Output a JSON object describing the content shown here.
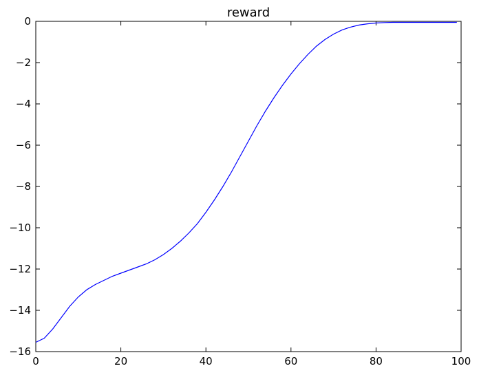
{
  "chart_data": {
    "type": "line",
    "title": "reward",
    "xlabel": "",
    "ylabel": "",
    "xlim": [
      0,
      100
    ],
    "ylim": [
      -16,
      0
    ],
    "xticks": [
      0,
      20,
      40,
      60,
      80,
      100
    ],
    "yticks": [
      0,
      -2,
      -4,
      -6,
      -8,
      -10,
      -12,
      -14,
      -16
    ],
    "grid": false,
    "legend": "none",
    "line_color": "#0000ff",
    "series": [
      {
        "x": [
          0,
          2,
          4,
          6,
          8,
          10,
          12,
          14,
          16,
          18,
          20,
          22,
          24,
          26,
          28,
          30,
          32,
          34,
          36,
          38,
          40,
          42,
          44,
          46,
          48,
          50,
          52,
          54,
          56,
          58,
          60,
          62,
          64,
          66,
          68,
          70,
          72,
          74,
          76,
          78,
          80,
          82,
          84,
          86,
          88,
          90,
          92,
          94,
          96,
          98,
          99
        ],
        "values": [
          -15.55,
          -15.35,
          -14.9,
          -14.35,
          -13.8,
          -13.35,
          -13.0,
          -12.75,
          -12.55,
          -12.35,
          -12.2,
          -12.05,
          -11.9,
          -11.75,
          -11.55,
          -11.3,
          -11.0,
          -10.65,
          -10.25,
          -9.8,
          -9.25,
          -8.65,
          -8.0,
          -7.3,
          -6.55,
          -5.8,
          -5.05,
          -4.35,
          -3.7,
          -3.1,
          -2.55,
          -2.05,
          -1.6,
          -1.2,
          -0.88,
          -0.62,
          -0.42,
          -0.28,
          -0.18,
          -0.12,
          -0.08,
          -0.06,
          -0.05,
          -0.05,
          -0.05,
          -0.05,
          -0.05,
          -0.05,
          -0.05,
          -0.05,
          -0.05
        ]
      }
    ]
  }
}
